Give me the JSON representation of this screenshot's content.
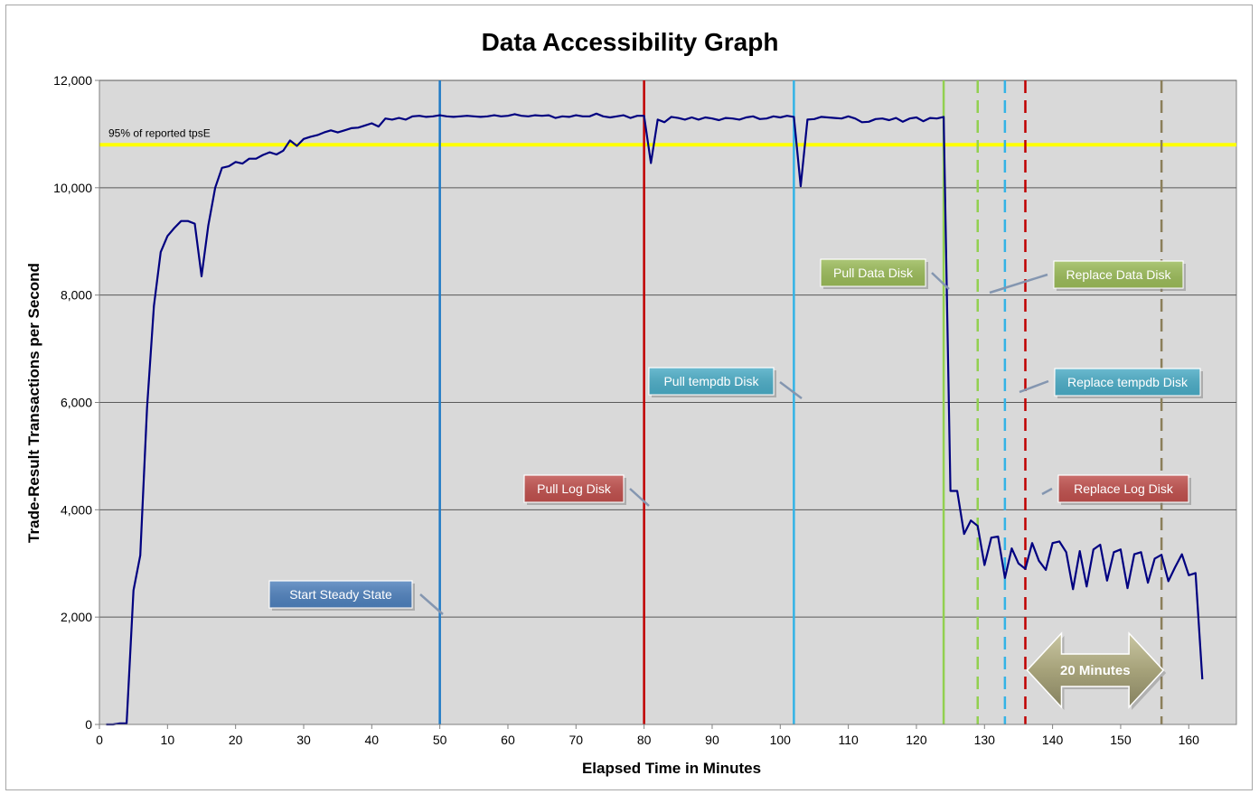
{
  "chart_data": {
    "type": "line",
    "title": "Data Accessibility Graph",
    "xlabel": "Elapsed Time in Minutes",
    "ylabel": "Trade-Result Transactions per Second",
    "xlim": [
      0,
      167
    ],
    "ylim": [
      0,
      12000
    ],
    "x_ticks": [
      0,
      10,
      20,
      30,
      40,
      50,
      60,
      70,
      80,
      90,
      100,
      110,
      120,
      130,
      140,
      150,
      160
    ],
    "y_ticks": [
      0,
      2000,
      4000,
      6000,
      8000,
      10000,
      12000
    ],
    "y_tick_labels": [
      "0",
      "2,000",
      "4,000",
      "6,000",
      "8,000",
      "10,000",
      "12,000"
    ],
    "grid": "horizontal",
    "colors": {
      "plot_background": "#d9d9d9",
      "series": "#000080",
      "reference_line": "#ffff00"
    },
    "reference_line": {
      "label": "95% of reported tpsE",
      "y": 10800
    },
    "series": [
      {
        "x": [
          1,
          2,
          3,
          4,
          5,
          6,
          7,
          8,
          9,
          10,
          11,
          12,
          13,
          14,
          15,
          16,
          17,
          18,
          19,
          20,
          21,
          22,
          23,
          24,
          25,
          26,
          27,
          28,
          29,
          30,
          31,
          32,
          33,
          34,
          35,
          36,
          37,
          38,
          39,
          40,
          41,
          42,
          43,
          44,
          45,
          46,
          47,
          48,
          49,
          50,
          51,
          52,
          53,
          54,
          55,
          56,
          57,
          58,
          59,
          60,
          61,
          62,
          63,
          64,
          65,
          66,
          67,
          68,
          69,
          70,
          71,
          72,
          73,
          74,
          75,
          76,
          77,
          78,
          79,
          80,
          81,
          82,
          83,
          84,
          85,
          86,
          87,
          88,
          89,
          90,
          91,
          92,
          93,
          94,
          95,
          96,
          97,
          98,
          99,
          100,
          101,
          102,
          103,
          104,
          105,
          106,
          107,
          108,
          109,
          110,
          111,
          112,
          113,
          114,
          115,
          116,
          117,
          118,
          119,
          120,
          121,
          122,
          123,
          124,
          125,
          126,
          127,
          128,
          129,
          130,
          131,
          132,
          133,
          134,
          135,
          136,
          137,
          138,
          139,
          140,
          141,
          142,
          143,
          144,
          145,
          146,
          147,
          148,
          149,
          150,
          151,
          152,
          153,
          154,
          155,
          156,
          157,
          158,
          159,
          160,
          161,
          162
        ],
        "values": [
          0,
          0,
          20,
          20,
          2500,
          3150,
          5900,
          7800,
          8800,
          9100,
          9250,
          9380,
          9380,
          9330,
          8350,
          9300,
          10000,
          10370,
          10400,
          10480,
          10450,
          10540,
          10540,
          10610,
          10660,
          10620,
          10690,
          10880,
          10780,
          10910,
          10950,
          10980,
          11030,
          11070,
          11030,
          11070,
          11110,
          11120,
          11160,
          11200,
          11140,
          11290,
          11270,
          11300,
          11270,
          11330,
          11340,
          11320,
          11330,
          11350,
          11330,
          11320,
          11330,
          11340,
          11330,
          11320,
          11330,
          11350,
          11330,
          11340,
          11370,
          11340,
          11330,
          11350,
          11340,
          11350,
          11300,
          11330,
          11320,
          11350,
          11330,
          11330,
          11380,
          11330,
          11310,
          11330,
          11350,
          11300,
          11340,
          11340,
          10460,
          11270,
          11220,
          11320,
          11300,
          11270,
          11310,
          11270,
          11310,
          11290,
          11260,
          11300,
          11290,
          11270,
          11310,
          11330,
          11280,
          11290,
          11330,
          11310,
          11340,
          11320,
          10030,
          11270,
          11280,
          11320,
          11310,
          11300,
          11290,
          11330,
          11290,
          11220,
          11230,
          11280,
          11290,
          11260,
          11300,
          11230,
          11290,
          11310,
          11240,
          11300,
          11290,
          11320,
          4350,
          4350,
          3550,
          3800,
          3700,
          2970,
          3480,
          3500,
          2730,
          3280,
          3000,
          2900,
          3380,
          3050,
          2880,
          3380,
          3410,
          3210,
          2520,
          3230,
          2570,
          3260,
          3350,
          2680,
          3210,
          3260,
          2540,
          3170,
          3210,
          2640,
          3090,
          3160,
          2670,
          2930,
          3170,
          2780,
          2820,
          840
        ]
      }
    ],
    "event_lines": [
      {
        "x": 50,
        "color": "#1f7ac6",
        "style": "solid",
        "label": "Start Steady State"
      },
      {
        "x": 80,
        "color": "#c00000",
        "style": "solid",
        "label": "Pull Log Disk"
      },
      {
        "x": 102,
        "color": "#33b3e6",
        "style": "solid",
        "label": "Pull tempdb Disk"
      },
      {
        "x": 124,
        "color": "#92d050",
        "style": "solid",
        "label": "Pull Data Disk"
      },
      {
        "x": 129,
        "color": "#92d050",
        "style": "dashed",
        "label": "Replace Data Disk"
      },
      {
        "x": 133,
        "color": "#33b3e6",
        "style": "dashed",
        "label": "Replace tempdb Disk"
      },
      {
        "x": 136,
        "color": "#c00000",
        "style": "dashed",
        "label": "Replace Log Disk"
      },
      {
        "x": 156,
        "color": "#8b7f5a",
        "style": "dashed",
        "label": ""
      }
    ],
    "callout_colors": {
      "Start Steady State": "#4f81bd",
      "Pull Log Disk": "#c0504d",
      "Pull tempdb Disk": "#4bacc6",
      "Pull Data Disk": "#9bbb59",
      "Replace Data Disk": "#9bbb59",
      "Replace tempdb Disk": "#4bacc6",
      "Replace Log Disk": "#c0504d"
    },
    "duration_arrow": {
      "label": "20 Minutes",
      "from": 136,
      "to": 156,
      "color": "#a6a27a"
    }
  }
}
